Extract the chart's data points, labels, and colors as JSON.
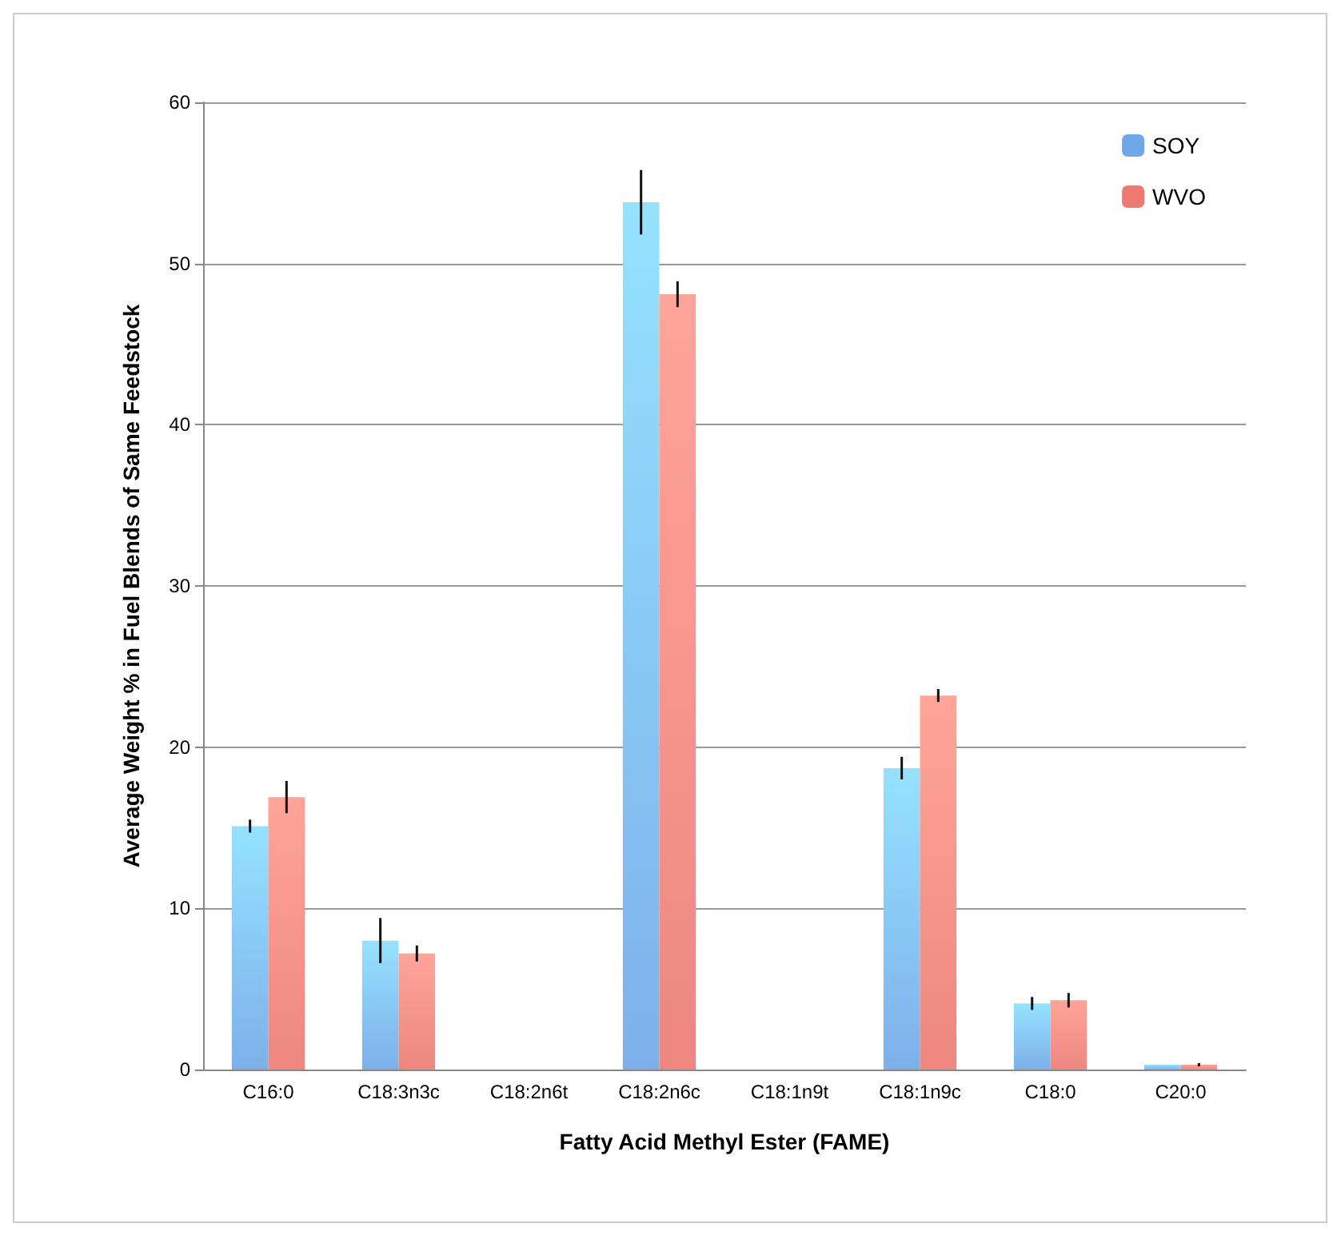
{
  "chart_data": {
    "type": "bar",
    "xlabel": "Fatty Acid Methyl Ester (FAME)",
    "ylabel": "Average Weight % in Fuel Blends of Same Feedstock",
    "categories": [
      "C16:0",
      "C18:3n3c",
      "C18:2n6t",
      "C18:2n6c",
      "C18:1n9t",
      "C18:1n9c",
      "C18:0",
      "C20:0"
    ],
    "series": [
      {
        "name": "SOY",
        "color": "#6fa8e8",
        "values": [
          15.1,
          8.0,
          0,
          53.8,
          0,
          18.7,
          4.1,
          0.3
        ],
        "errors": [
          0.4,
          1.4,
          null,
          2.0,
          null,
          0.7,
          0.4,
          null
        ]
      },
      {
        "name": "WVO",
        "color": "#ec7a72",
        "values": [
          16.9,
          7.2,
          0,
          48.1,
          0,
          23.2,
          4.3,
          0.3
        ],
        "errors": [
          1.0,
          0.5,
          null,
          0.8,
          null,
          0.4,
          0.45,
          0.1
        ]
      }
    ],
    "ylim": [
      0,
      60
    ],
    "yticks": [
      0,
      10,
      20,
      30,
      40,
      50,
      60
    ],
    "grid": "y",
    "legend": "top right"
  }
}
